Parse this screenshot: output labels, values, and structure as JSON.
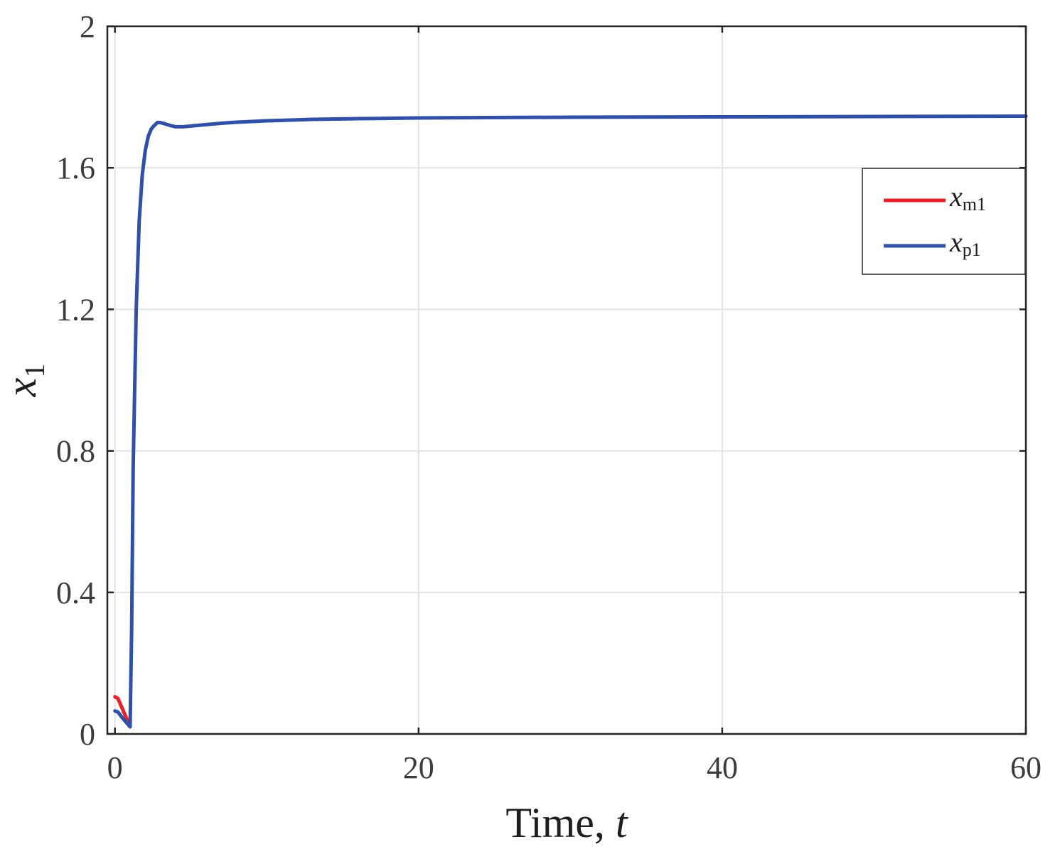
{
  "chart_data": {
    "type": "line",
    "title": "",
    "xlabel_main": "Time, ",
    "xlabel_var": "t",
    "ylabel_main": "x",
    "ylabel_sub": "1",
    "xlim": [
      -0.5,
      60
    ],
    "ylim": [
      0,
      2
    ],
    "xticks": [
      0,
      20,
      40,
      60
    ],
    "xtick_labels": [
      "0",
      "20",
      "40",
      "60"
    ],
    "yticks": [
      0,
      0.4,
      0.8,
      1.2,
      1.6,
      2
    ],
    "ytick_labels": [
      "0",
      "0.4",
      "0.8",
      "1.2",
      "1.6",
      "2"
    ],
    "grid": true,
    "legend_position": "top-right",
    "series": [
      {
        "name_main": "x",
        "name_sub": "m1",
        "color": "#e8202a",
        "x": [
          0,
          0.2,
          0.5,
          0.8,
          1.0
        ],
        "y": [
          0.105,
          0.1,
          0.07,
          0.04,
          0.028
        ]
      },
      {
        "name_main": "x",
        "name_sub": "p1",
        "color": "#3050a8",
        "x": [
          0,
          0.2,
          0.5,
          0.8,
          1.0,
          1.1,
          1.2,
          1.4,
          1.6,
          1.8,
          2.0,
          2.2,
          2.4,
          2.6,
          2.8,
          3.0,
          3.3,
          3.6,
          4.0,
          4.5,
          5,
          6,
          7,
          8,
          10,
          13,
          16,
          20,
          30,
          40,
          50,
          60
        ],
        "y": [
          0.065,
          0.062,
          0.045,
          0.03,
          0.02,
          0.3,
          0.75,
          1.2,
          1.45,
          1.58,
          1.65,
          1.69,
          1.71,
          1.72,
          1.728,
          1.728,
          1.724,
          1.72,
          1.716,
          1.716,
          1.718,
          1.722,
          1.726,
          1.729,
          1.733,
          1.737,
          1.739,
          1.741,
          1.743,
          1.744,
          1.745,
          1.746
        ]
      }
    ]
  }
}
